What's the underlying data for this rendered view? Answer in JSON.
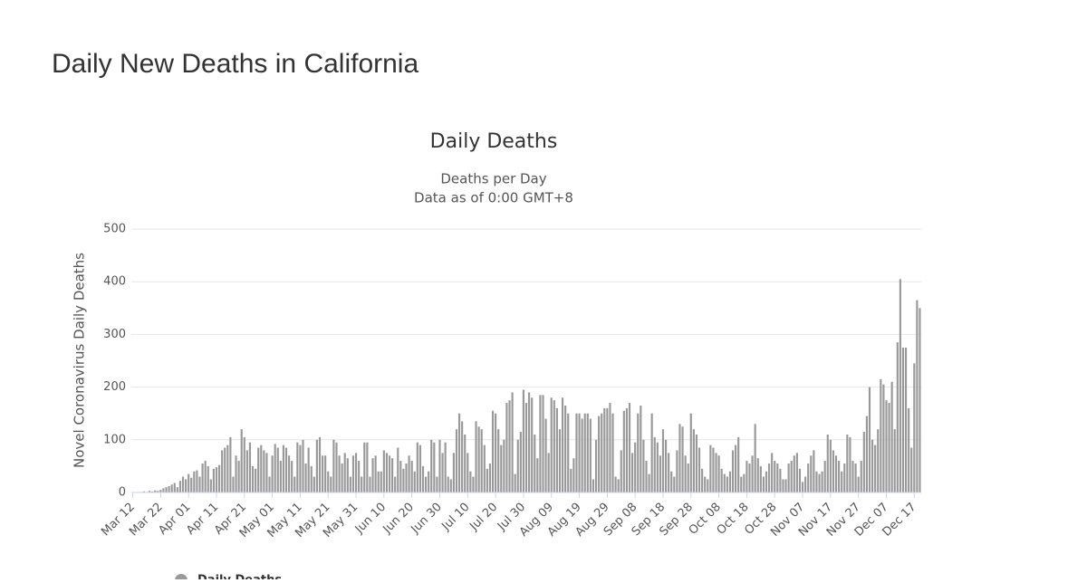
{
  "page_title": "Daily New Deaths in California",
  "chart_data": {
    "type": "bar",
    "title": "Daily Deaths",
    "subtitle": [
      "Deaths per Day",
      "Data as of 0:00 GMT+8"
    ],
    "y_label": "Novel Coronavirus Daily Deaths",
    "categories": [
      "Mar 12",
      null,
      null,
      null,
      null,
      null,
      null,
      null,
      null,
      null,
      "Mar 22",
      null,
      null,
      null,
      null,
      null,
      null,
      null,
      null,
      null,
      "Apr 01",
      null,
      null,
      null,
      null,
      null,
      null,
      null,
      null,
      null,
      "Apr 11",
      null,
      null,
      null,
      null,
      null,
      null,
      null,
      null,
      null,
      "Apr 21",
      null,
      null,
      null,
      null,
      null,
      null,
      null,
      null,
      null,
      "May 01",
      null,
      null,
      null,
      null,
      null,
      null,
      null,
      null,
      null,
      "May 11",
      null,
      null,
      null,
      null,
      null,
      null,
      null,
      null,
      null,
      "May 21",
      null,
      null,
      null,
      null,
      null,
      null,
      null,
      null,
      null,
      "May 31",
      null,
      null,
      null,
      null,
      null,
      null,
      null,
      null,
      null,
      "Jun 10",
      null,
      null,
      null,
      null,
      null,
      null,
      null,
      null,
      null,
      "Jun 20",
      null,
      null,
      null,
      null,
      null,
      null,
      null,
      null,
      null,
      "Jun 30",
      null,
      null,
      null,
      null,
      null,
      null,
      null,
      null,
      null,
      "Jul 10",
      null,
      null,
      null,
      null,
      null,
      null,
      null,
      null,
      null,
      "Jul 20",
      null,
      null,
      null,
      null,
      null,
      null,
      null,
      null,
      null,
      "Jul 30",
      null,
      null,
      null,
      null,
      null,
      null,
      null,
      null,
      null,
      "Aug 09",
      null,
      null,
      null,
      null,
      null,
      null,
      null,
      null,
      null,
      "Aug 19",
      null,
      null,
      null,
      null,
      null,
      null,
      null,
      null,
      null,
      "Aug 29",
      null,
      null,
      null,
      null,
      null,
      null,
      null,
      null,
      null,
      "Sep 08",
      null,
      null,
      null,
      null,
      null,
      null,
      null,
      null,
      null,
      "Sep 18",
      null,
      null,
      null,
      null,
      null,
      null,
      null,
      null,
      null,
      "Sep 28",
      null,
      null,
      null,
      null,
      null,
      null,
      null,
      null,
      null,
      "Oct 08",
      null,
      null,
      null,
      null,
      null,
      null,
      null,
      null,
      null,
      "Oct 18",
      null,
      null,
      null,
      null,
      null,
      null,
      null,
      null,
      null,
      "Oct 28",
      null,
      null,
      null,
      null,
      null,
      null,
      null,
      null,
      null,
      "Nov 07",
      null,
      null,
      null,
      null,
      null,
      null,
      null,
      null,
      null,
      "Nov 17",
      null,
      null,
      null,
      null,
      null,
      null,
      null,
      null,
      null,
      "Nov 27",
      null,
      null,
      null,
      null,
      null,
      null,
      null,
      null,
      null,
      "Dec 07",
      null,
      null,
      null,
      null,
      null,
      null,
      null,
      null,
      null,
      "Dec 17",
      null,
      null
    ],
    "series": [
      {
        "name": "Daily Deaths",
        "color": "#999999",
        "values": [
          0,
          0,
          1,
          1,
          2,
          1,
          3,
          2,
          4,
          3,
          5,
          8,
          10,
          12,
          15,
          18,
          10,
          22,
          30,
          25,
          35,
          28,
          40,
          42,
          30,
          55,
          60,
          50,
          25,
          45,
          48,
          52,
          80,
          85,
          90,
          105,
          30,
          70,
          60,
          120,
          105,
          80,
          95,
          50,
          45,
          85,
          90,
          80,
          75,
          30,
          70,
          92,
          85,
          60,
          90,
          85,
          70,
          60,
          30,
          95,
          90,
          100,
          55,
          85,
          50,
          30,
          100,
          105,
          70,
          70,
          40,
          30,
          100,
          95,
          70,
          55,
          75,
          65,
          30,
          70,
          75,
          60,
          30,
          95,
          95,
          30,
          65,
          70,
          40,
          40,
          80,
          75,
          70,
          65,
          30,
          85,
          60,
          45,
          55,
          70,
          60,
          40,
          95,
          90,
          50,
          30,
          40,
          100,
          95,
          30,
          100,
          75,
          95,
          30,
          25,
          75,
          120,
          150,
          135,
          110,
          75,
          40,
          30,
          135,
          125,
          120,
          90,
          45,
          55,
          155,
          150,
          120,
          90,
          100,
          170,
          175,
          190,
          35,
          100,
          115,
          195,
          170,
          190,
          180,
          110,
          65,
          185,
          185,
          140,
          75,
          180,
          175,
          160,
          120,
          180,
          165,
          150,
          45,
          65,
          150,
          150,
          140,
          150,
          150,
          140,
          25,
          100,
          145,
          150,
          160,
          160,
          170,
          150,
          30,
          25,
          80,
          155,
          160,
          170,
          75,
          95,
          150,
          165,
          100,
          60,
          35,
          150,
          105,
          95,
          70,
          120,
          100,
          75,
          40,
          30,
          80,
          130,
          125,
          70,
          55,
          150,
          120,
          110,
          85,
          45,
          30,
          25,
          90,
          85,
          75,
          70,
          45,
          35,
          30,
          40,
          80,
          90,
          105,
          30,
          35,
          60,
          55,
          70,
          130,
          65,
          50,
          30,
          40,
          55,
          75,
          60,
          55,
          45,
          25,
          25,
          55,
          60,
          70,
          75,
          45,
          20,
          30,
          55,
          70,
          80,
          40,
          35,
          40,
          60,
          110,
          100,
          80,
          70,
          60,
          40,
          55,
          110,
          105,
          60,
          55,
          30,
          60,
          115,
          145,
          200,
          100,
          90,
          120,
          215,
          205,
          175,
          170,
          210,
          120,
          285,
          405,
          275,
          275,
          160,
          85,
          245,
          365,
          350
        ]
      }
    ],
    "ylim": [
      0,
      500
    ],
    "yticks": [
      0,
      100,
      200,
      300,
      400,
      500
    ],
    "grid": true
  }
}
